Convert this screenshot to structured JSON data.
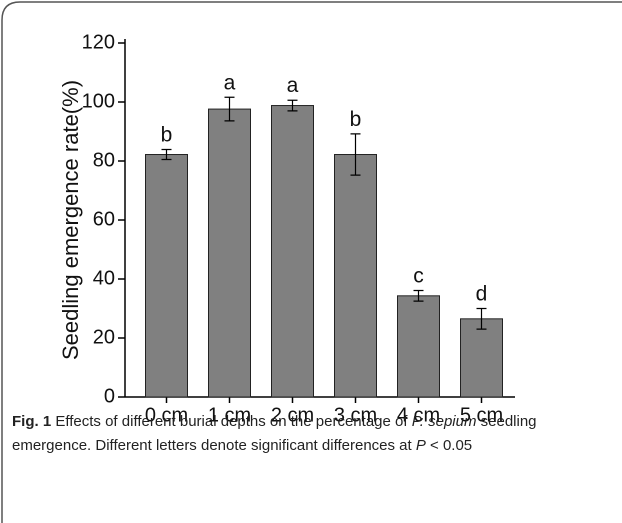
{
  "chart_data": {
    "type": "bar",
    "ylabel": "Seedling emergence rate(%)",
    "categories": [
      "0 cm",
      "1 cm",
      "2 cm",
      "3 cm",
      "4 cm",
      "5 cm"
    ],
    "values": [
      82.2,
      97.6,
      98.8,
      82.2,
      34.3,
      26.5
    ],
    "errors": [
      1.7,
      4.0,
      1.8,
      7.0,
      1.8,
      3.5
    ],
    "annotations": [
      "b",
      "a",
      "a",
      "b",
      "c",
      "d"
    ],
    "color": "#808080",
    "ylim": [
      0,
      120
    ],
    "yticks": [
      0,
      20,
      40,
      60,
      80,
      100,
      120
    ],
    "grid": false
  },
  "caption": {
    "label": "Fig. 1",
    "parts": [
      {
        "text": " Effects of different burial depths on the percentage of ",
        "italic": false
      },
      {
        "text": "P. sepium",
        "italic": true
      },
      {
        "text": " seedling emergence. Different letters denote significant differences at ",
        "italic": false
      },
      {
        "text": "P",
        "italic": true
      },
      {
        "text": " < 0.05",
        "italic": false
      }
    ]
  }
}
